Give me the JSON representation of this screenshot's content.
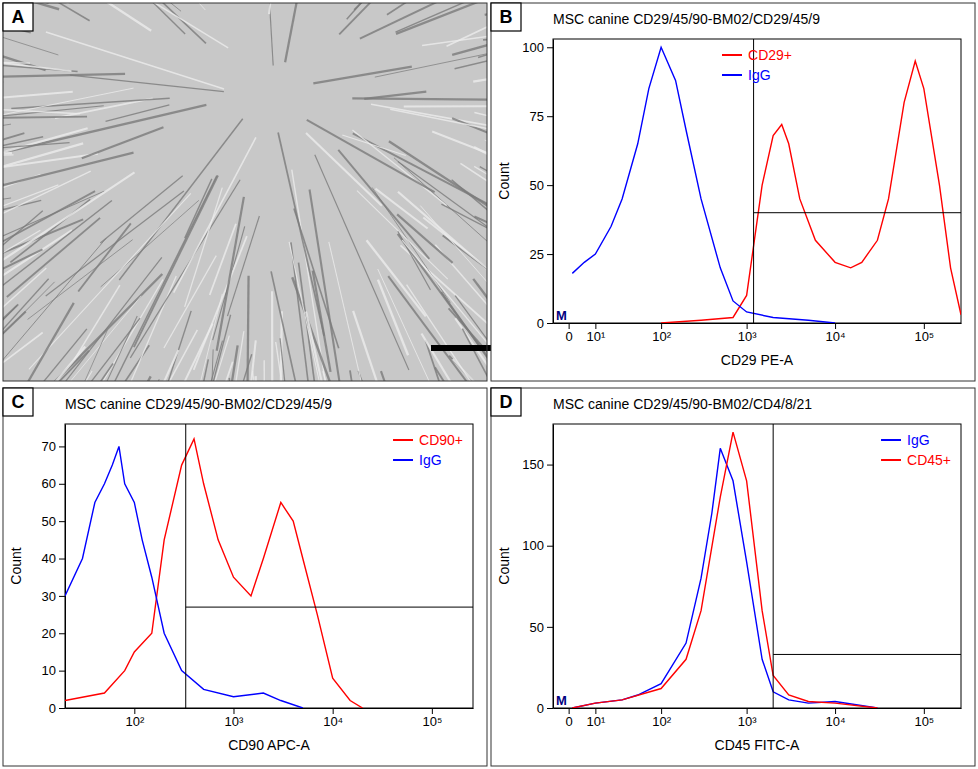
{
  "image_panel": {
    "panel": "A"
  },
  "chart_data": [
    {
      "panel": "B",
      "type": "line",
      "title": "MSC canine CD29/45/90-BM02/CD29/45/9",
      "x_label": "CD29 PE-A",
      "y_label": "Count",
      "log": "x",
      "xlim": [
        -5,
        262144
      ],
      "xticks": [
        {
          "value": 0,
          "label": "0"
        },
        {
          "value": 10,
          "label": "10¹"
        },
        {
          "value": 100,
          "label": "10²"
        },
        {
          "value": 1000,
          "label": "10³"
        },
        {
          "value": 10000,
          "label": "10⁴"
        },
        {
          "value": 100000,
          "label": "10⁵"
        }
      ],
      "ylim": [
        0,
        103
      ],
      "yticks": [
        0,
        25,
        50,
        75,
        100
      ],
      "legend": "upper center",
      "gate": {
        "x": 1200,
        "y": 40
      },
      "annotations": [
        "M"
      ],
      "series": [
        {
          "name": "CD29+",
          "color": "#ff0000",
          "x": [
            100,
            300,
            700,
            1000,
            1500,
            2000,
            2500,
            3000,
            4000,
            6000,
            10000,
            15000,
            20000,
            30000,
            40000,
            60000,
            80000,
            100000,
            150000,
            200000,
            262144
          ],
          "values": [
            0,
            1,
            2,
            10,
            50,
            68,
            72,
            65,
            45,
            30,
            22,
            20,
            22,
            30,
            45,
            80,
            95,
            85,
            50,
            20,
            3
          ]
        },
        {
          "name": "IgG",
          "color": "#0000ff",
          "x": [
            1,
            5,
            10,
            20,
            30,
            50,
            70,
            100,
            150,
            200,
            300,
            500,
            700,
            1000,
            2000,
            5000,
            10000
          ],
          "values": [
            18,
            22,
            25,
            35,
            45,
            65,
            85,
            100,
            88,
            70,
            45,
            20,
            8,
            4,
            2,
            1,
            0
          ]
        }
      ]
    },
    {
      "panel": "C",
      "type": "line",
      "title": "MSC canine CD29/45/90-BM02/CD29/45/9",
      "x_label": "CD90 APC-A",
      "y_label": "Count",
      "log": "x",
      "xlim": [
        20,
        260000
      ],
      "xticks": [
        {
          "value": 100,
          "label": "10²"
        },
        {
          "value": 1000,
          "label": "10³"
        },
        {
          "value": 10000,
          "label": "10⁴"
        },
        {
          "value": 100000,
          "label": "10⁵"
        }
      ],
      "ylim": [
        0,
        76
      ],
      "yticks": [
        0,
        10,
        20,
        30,
        40,
        50,
        60,
        70
      ],
      "legend": "upper right",
      "gate": {
        "x": 330,
        "y": 27
      },
      "series": [
        {
          "name": "CD90+",
          "color": "#ff0000",
          "x": [
            20,
            50,
            80,
            100,
            150,
            200,
            300,
            400,
            500,
            700,
            1000,
            1500,
            2000,
            3000,
            4000,
            5000,
            7000,
            10000,
            15000,
            20000
          ],
          "values": [
            2,
            4,
            10,
            15,
            20,
            45,
            65,
            72,
            60,
            45,
            35,
            30,
            40,
            55,
            50,
            40,
            25,
            8,
            2,
            0
          ]
        },
        {
          "name": "IgG",
          "color": "#0000ff",
          "x": [
            20,
            30,
            40,
            50,
            60,
            70,
            80,
            100,
            120,
            150,
            200,
            300,
            500,
            1000,
            2000,
            3000,
            5000
          ],
          "values": [
            30,
            40,
            55,
            60,
            65,
            70,
            60,
            55,
            45,
            35,
            20,
            10,
            5,
            3,
            4,
            2,
            0
          ]
        }
      ]
    },
    {
      "panel": "D",
      "type": "line",
      "title": "MSC canine CD29/45/90-BM02/CD4/8/21",
      "x_label": "CD45 FITC-A",
      "y_label": "Count",
      "log": "x",
      "xlim": [
        -5,
        262144
      ],
      "xticks": [
        {
          "value": 0,
          "label": "0"
        },
        {
          "value": 10,
          "label": "10¹"
        },
        {
          "value": 100,
          "label": "10²"
        },
        {
          "value": 1000,
          "label": "10³"
        },
        {
          "value": 10000,
          "label": "10⁴"
        },
        {
          "value": 100000,
          "label": "10⁵"
        }
      ],
      "ylim": [
        0,
        175
      ],
      "yticks": [
        0,
        50,
        100,
        150
      ],
      "legend": "upper right",
      "gate": {
        "x": 2000,
        "y": 33
      },
      "annotations": [
        "M"
      ],
      "series": [
        {
          "name": "IgG",
          "color": "#0000ff",
          "x": [
            1,
            10,
            30,
            50,
            100,
            200,
            300,
            400,
            500,
            700,
            1000,
            1500,
            2000,
            3000,
            5000,
            10000,
            30000
          ],
          "values": [
            0,
            3,
            5,
            8,
            15,
            40,
            80,
            120,
            160,
            140,
            90,
            30,
            10,
            5,
            3,
            4,
            0
          ]
        },
        {
          "name": "CD45+",
          "color": "#ff0000",
          "x": [
            1,
            10,
            30,
            100,
            200,
            300,
            500,
            700,
            1000,
            1500,
            2000,
            3000,
            5000,
            10000,
            30000
          ],
          "values": [
            0,
            3,
            5,
            12,
            30,
            60,
            130,
            170,
            140,
            60,
            20,
            8,
            4,
            3,
            0
          ]
        }
      ]
    }
  ]
}
